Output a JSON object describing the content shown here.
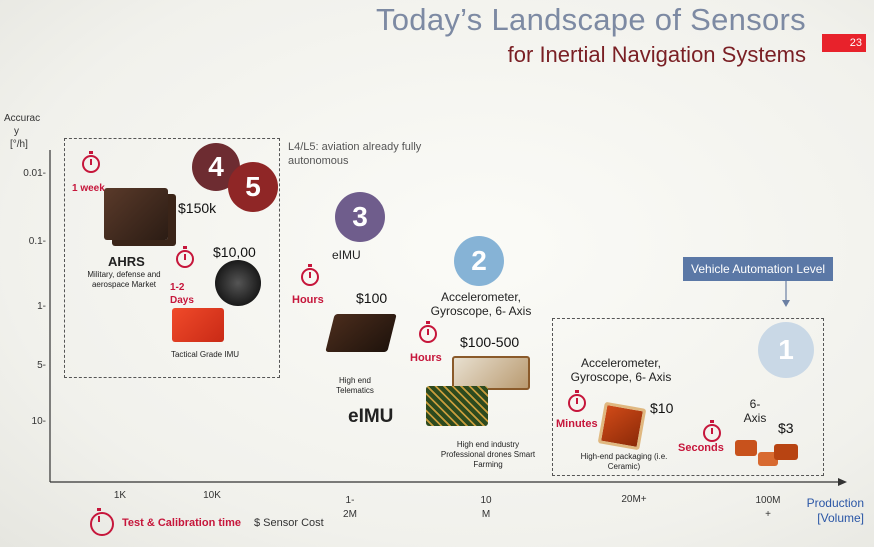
{
  "header": {
    "title": "Today’s Landscape of Sensors",
    "subtitle": "for Inertial Navigation Systems",
    "page_number": "23"
  },
  "axes": {
    "y_label_lines": [
      "Accurac",
      "y",
      "[°/h]"
    ],
    "y_ticks": [
      "0.01-",
      "0.1-",
      "1-",
      "5-",
      "10-"
    ],
    "x_ticks": [
      [
        "1K"
      ],
      [
        "10K"
      ],
      [
        "1-",
        "2M"
      ],
      [
        "10",
        "M"
      ],
      [
        "20M+"
      ],
      [
        "100M",
        "+"
      ]
    ],
    "x_label_lines": [
      "Production",
      "[Volume]"
    ]
  },
  "levels": [
    {
      "number": "1",
      "color": "#c9d8e6"
    },
    {
      "number": "2",
      "color": "#86b3d6"
    },
    {
      "number": "3",
      "color": "#6f5d8c"
    },
    {
      "number": "4",
      "color": "#6d2c31"
    },
    {
      "number": "5",
      "color": "#8f2626"
    }
  ],
  "note_l4l5": "L4/L5: aviation already fully autonomous",
  "badge": "Vehicle Automation Level",
  "ahrs": {
    "time": "1 week",
    "price": "$150k",
    "name": "AHRS",
    "desc": "Military, defense and aerospace Market"
  },
  "tactical": {
    "time": "1-2 Days",
    "price": "$10,00",
    "desc": "Tactical Grade IMU"
  },
  "eimu_top": {
    "name": "eIMU",
    "time": "Hours",
    "price": "$100",
    "desc": "High end Telematics"
  },
  "eimu_big": "eIMU",
  "level2": {
    "title": "Accelerometer, Gyroscope, 6- Axis",
    "time": "Hours",
    "price": "$100-500",
    "desc": "High end industry Professional drones Smart Farming"
  },
  "level1": {
    "title": "Accelerometer, Gyroscope, 6- Axis",
    "time": "Minutes",
    "price": "$10",
    "desc": "High-end packaging (i.e. Ceramic)",
    "time2": "Seconds",
    "axis_label": "6- Axis",
    "price2": "$3"
  },
  "legend": {
    "time_label": "Test & Calibration time",
    "cost_label": "$ Sensor Cost"
  },
  "colors": {
    "accent_red": "#c6163b",
    "title_gray": "#7d8aa3",
    "subtitle_maroon": "#7a1f24",
    "badge_blue": "#5b78a6"
  }
}
